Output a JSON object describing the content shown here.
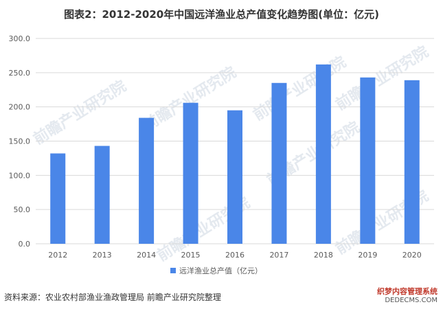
{
  "title": "图表2：2012-2020年中国远洋渔业总产值变化趋势图(单位：亿元)",
  "source": "资料来源：农业农村部渔业渔政管理局 前瞻产业研究院整理",
  "watermark_text": "前瞻产业研究院",
  "corner_badge": {
    "top": "织梦内容管理系统",
    "bottom": "DEDECMS.COM"
  },
  "colors": {
    "bar": "#4a86e8",
    "grid": "#d9d9d9",
    "text": "#595959",
    "title": "#333333"
  },
  "chart_data": {
    "type": "bar",
    "title": "图表2：2012-2020年中国远洋渔业总产值变化趋势图(单位：亿元)",
    "categories": [
      "2012",
      "2013",
      "2014",
      "2015",
      "2016",
      "2017",
      "2018",
      "2019",
      "2020"
    ],
    "series": [
      {
        "name": "远洋渔业总产值（亿元）",
        "values": [
          132,
          143,
          184,
          206,
          195,
          235,
          262,
          243,
          239
        ]
      }
    ],
    "yticks": [
      "0.0",
      "50.0",
      "100.0",
      "150.0",
      "200.0",
      "250.0",
      "300.0"
    ],
    "ylim": [
      0,
      300
    ],
    "grid": true,
    "legend_position": "bottom"
  }
}
